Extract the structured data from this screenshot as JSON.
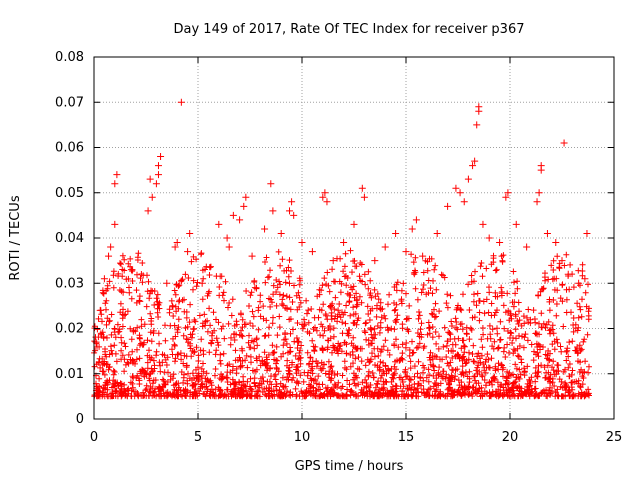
{
  "chart_data": {
    "type": "scatter",
    "title": "Day 149 of 2017, Rate Of TEC Index for receiver p367",
    "xlabel": "GPS time / hours",
    "ylabel": "ROTI / TECUs",
    "xlim": [
      0,
      25
    ],
    "ylim": [
      0,
      0.08
    ],
    "xticks": [
      0,
      5,
      10,
      15,
      20,
      25
    ],
    "xtick_labels": [
      "0",
      "5",
      "10",
      "15",
      "20",
      "25"
    ],
    "yticks": [
      0,
      0.01,
      0.02,
      0.03,
      0.04,
      0.05,
      0.06,
      0.07,
      0.08
    ],
    "ytick_labels": [
      "0",
      "0.01",
      "0.02",
      "0.03",
      "0.04",
      "0.05",
      "0.06",
      "0.07",
      "0.08"
    ],
    "grid": true,
    "marker": "+",
    "marker_color": "#ff0000",
    "data_time_range_hours": [
      0,
      23.8
    ],
    "typical_range": [
      0.005,
      0.03
    ],
    "series": [
      {
        "name": "ROTI",
        "points": [
          [
            0.1,
            0.017
          ],
          [
            0.3,
            0.024
          ],
          [
            0.5,
            0.031
          ],
          [
            0.6,
            0.012
          ],
          [
            0.7,
            0.036
          ],
          [
            0.8,
            0.038
          ],
          [
            1.0,
            0.043
          ],
          [
            1.0,
            0.052
          ],
          [
            1.1,
            0.054
          ],
          [
            1.4,
            0.028
          ],
          [
            1.8,
            0.033
          ],
          [
            2.2,
            0.026
          ],
          [
            2.6,
            0.046
          ],
          [
            2.7,
            0.053
          ],
          [
            2.8,
            0.049
          ],
          [
            3.0,
            0.052
          ],
          [
            3.1,
            0.054
          ],
          [
            3.1,
            0.056
          ],
          [
            3.2,
            0.058
          ],
          [
            3.5,
            0.03
          ],
          [
            3.9,
            0.038
          ],
          [
            4.0,
            0.039
          ],
          [
            4.2,
            0.07
          ],
          [
            4.5,
            0.037
          ],
          [
            4.6,
            0.041
          ],
          [
            5.2,
            0.03
          ],
          [
            6.0,
            0.043
          ],
          [
            6.4,
            0.04
          ],
          [
            6.5,
            0.038
          ],
          [
            6.7,
            0.045
          ],
          [
            7.0,
            0.044
          ],
          [
            7.2,
            0.047
          ],
          [
            7.3,
            0.049
          ],
          [
            7.6,
            0.036
          ],
          [
            8.2,
            0.042
          ],
          [
            8.5,
            0.052
          ],
          [
            8.6,
            0.046
          ],
          [
            9.0,
            0.041
          ],
          [
            9.4,
            0.046
          ],
          [
            9.5,
            0.048
          ],
          [
            9.6,
            0.045
          ],
          [
            10.0,
            0.039
          ],
          [
            10.5,
            0.037
          ],
          [
            11.0,
            0.049
          ],
          [
            11.1,
            0.05
          ],
          [
            11.2,
            0.048
          ],
          [
            11.5,
            0.035
          ],
          [
            12.0,
            0.039
          ],
          [
            12.5,
            0.043
          ],
          [
            12.9,
            0.051
          ],
          [
            13.0,
            0.049
          ],
          [
            13.5,
            0.035
          ],
          [
            14.0,
            0.038
          ],
          [
            14.5,
            0.041
          ],
          [
            15.0,
            0.037
          ],
          [
            15.3,
            0.042
          ],
          [
            15.5,
            0.044
          ],
          [
            15.8,
            0.036
          ],
          [
            16.5,
            0.041
          ],
          [
            17.0,
            0.047
          ],
          [
            17.4,
            0.051
          ],
          [
            17.6,
            0.05
          ],
          [
            17.8,
            0.048
          ],
          [
            18.0,
            0.053
          ],
          [
            18.2,
            0.056
          ],
          [
            18.3,
            0.057
          ],
          [
            18.4,
            0.065
          ],
          [
            18.5,
            0.068
          ],
          [
            18.5,
            0.069
          ],
          [
            18.7,
            0.043
          ],
          [
            19.0,
            0.04
          ],
          [
            19.5,
            0.039
          ],
          [
            19.8,
            0.049
          ],
          [
            19.9,
            0.05
          ],
          [
            20.3,
            0.043
          ],
          [
            20.8,
            0.038
          ],
          [
            21.3,
            0.048
          ],
          [
            21.4,
            0.05
          ],
          [
            21.5,
            0.055
          ],
          [
            21.5,
            0.056
          ],
          [
            21.8,
            0.041
          ],
          [
            22.2,
            0.039
          ],
          [
            22.5,
            0.035
          ],
          [
            22.6,
            0.061
          ],
          [
            22.8,
            0.032
          ],
          [
            23.3,
            0.03
          ],
          [
            23.6,
            0.031
          ],
          [
            23.7,
            0.041
          ]
        ]
      }
    ]
  }
}
